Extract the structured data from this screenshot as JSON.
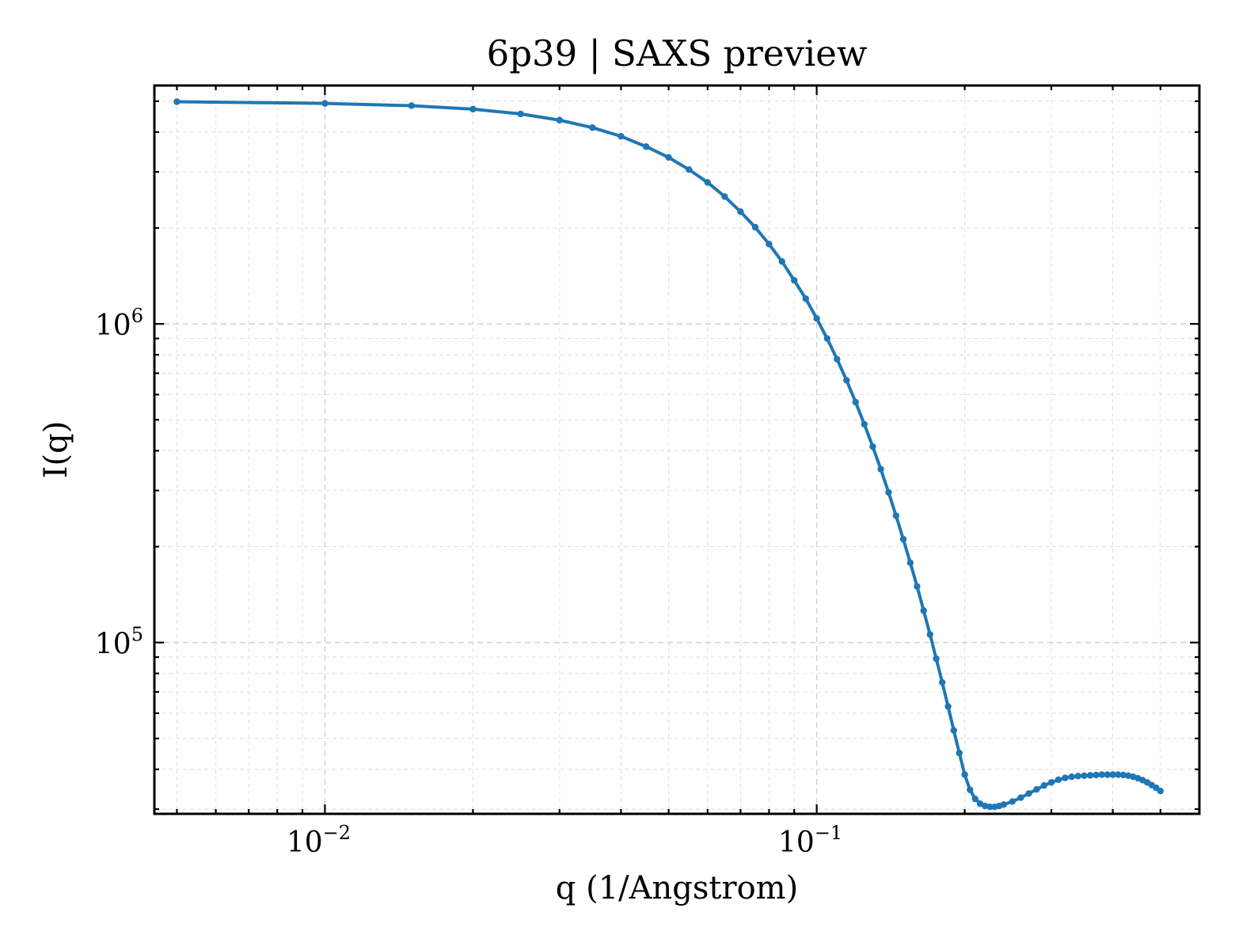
{
  "chart_data": {
    "type": "line",
    "title": "6p39 | SAXS preview",
    "xlabel": "q (1/Angstrom)",
    "ylabel": "I(q)",
    "xscale": "log",
    "yscale": "log",
    "xlim": [
      0.0045,
      0.6
    ],
    "ylim": [
      29000,
      5600000
    ],
    "grid": true,
    "legend": "none",
    "color": "#1f77b4",
    "x_ticks": [
      {
        "value": 0.01,
        "base": "10",
        "exp": "−2"
      },
      {
        "value": 0.1,
        "base": "10",
        "exp": "−1"
      }
    ],
    "y_ticks": [
      {
        "value": 100000,
        "base": "10",
        "exp": "5"
      },
      {
        "value": 1000000,
        "base": "10",
        "exp": "6"
      }
    ],
    "series": [
      {
        "values": [
          [
            0.005,
            4980000
          ],
          [
            0.01,
            4920000
          ],
          [
            0.015,
            4840000
          ],
          [
            0.02,
            4720000
          ],
          [
            0.025,
            4560000
          ],
          [
            0.03,
            4360000
          ],
          [
            0.035,
            4130000
          ],
          [
            0.04,
            3880000
          ],
          [
            0.045,
            3600000
          ],
          [
            0.05,
            3330000
          ],
          [
            0.055,
            3050000
          ],
          [
            0.06,
            2780000
          ],
          [
            0.065,
            2510000
          ],
          [
            0.07,
            2250000
          ],
          [
            0.075,
            2010000
          ],
          [
            0.08,
            1780000
          ],
          [
            0.085,
            1570000
          ],
          [
            0.09,
            1370000
          ],
          [
            0.095,
            1200000
          ],
          [
            0.1,
            1040000
          ],
          [
            0.105,
            900000
          ],
          [
            0.11,
            775000
          ],
          [
            0.115,
            665000
          ],
          [
            0.12,
            568000
          ],
          [
            0.125,
            484000
          ],
          [
            0.13,
            412000
          ],
          [
            0.135,
            350000
          ],
          [
            0.14,
            296000
          ],
          [
            0.145,
            250000
          ],
          [
            0.15,
            211000
          ],
          [
            0.155,
            178000
          ],
          [
            0.16,
            150000
          ],
          [
            0.165,
            126000
          ],
          [
            0.17,
            106000
          ],
          [
            0.175,
            89000
          ],
          [
            0.18,
            75000
          ],
          [
            0.185,
            63000
          ],
          [
            0.19,
            53000
          ],
          [
            0.195,
            45000
          ],
          [
            0.2,
            38500
          ],
          [
            0.205,
            34500
          ],
          [
            0.21,
            32300
          ],
          [
            0.215,
            31200
          ],
          [
            0.22,
            30700
          ],
          [
            0.225,
            30500
          ],
          [
            0.23,
            30500
          ],
          [
            0.235,
            30700
          ],
          [
            0.24,
            31000
          ],
          [
            0.25,
            31700
          ],
          [
            0.26,
            32600
          ],
          [
            0.27,
            33600
          ],
          [
            0.28,
            34600
          ],
          [
            0.29,
            35600
          ],
          [
            0.3,
            36400
          ],
          [
            0.31,
            37100
          ],
          [
            0.32,
            37600
          ],
          [
            0.33,
            37900
          ],
          [
            0.34,
            38100
          ],
          [
            0.35,
            38200
          ],
          [
            0.36,
            38300
          ],
          [
            0.37,
            38400
          ],
          [
            0.38,
            38500
          ],
          [
            0.39,
            38500
          ],
          [
            0.4,
            38500
          ],
          [
            0.41,
            38500
          ],
          [
            0.42,
            38400
          ],
          [
            0.43,
            38200
          ],
          [
            0.44,
            37900
          ],
          [
            0.45,
            37500
          ],
          [
            0.46,
            37000
          ],
          [
            0.47,
            36400
          ],
          [
            0.48,
            35700
          ],
          [
            0.49,
            35000
          ],
          [
            0.5,
            34200
          ]
        ]
      }
    ]
  }
}
